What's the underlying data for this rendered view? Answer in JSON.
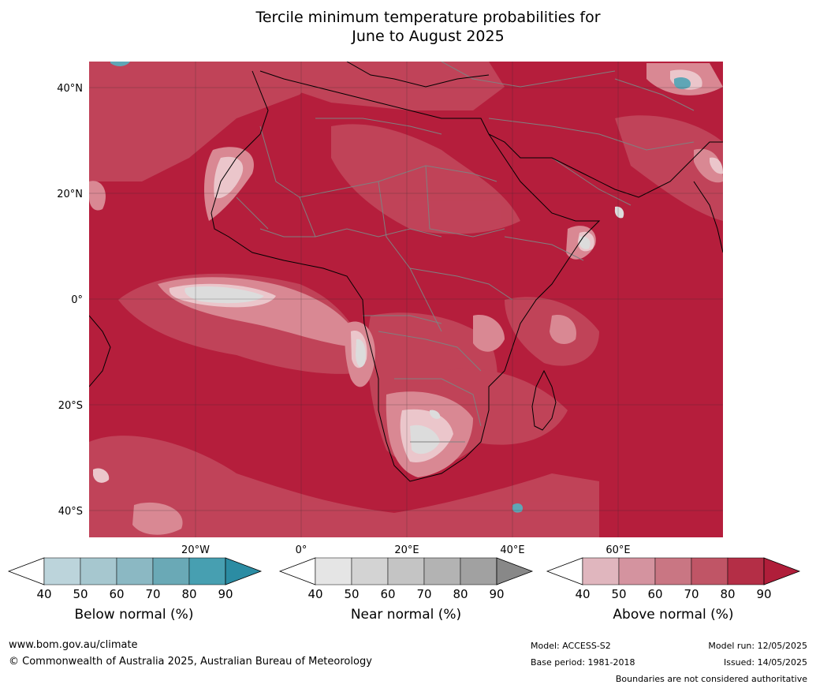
{
  "title_line1": "Tercile minimum temperature probabilities for",
  "title_line2": "June to August 2025",
  "lat_labels": [
    "40°N",
    "20°N",
    "0°",
    "20°S",
    "40°S"
  ],
  "lon_labels": [
    "20°W",
    "0°",
    "20°E",
    "40°E",
    "60°E"
  ],
  "colorbars": [
    {
      "label": "Below normal (%)",
      "ticks": [
        "40",
        "50",
        "60",
        "70",
        "80",
        "90"
      ],
      "colors": [
        "#ffffff",
        "#bcd4db",
        "#a6c7cf",
        "#8bb8c3",
        "#6aa9b6",
        "#479fb1",
        "#2b8ca3"
      ]
    },
    {
      "label": "Near normal (%)",
      "ticks": [
        "40",
        "50",
        "60",
        "70",
        "80",
        "90"
      ],
      "colors": [
        "#ffffff",
        "#e5e5e5",
        "#d3d3d3",
        "#c4c4c4",
        "#b3b3b3",
        "#a1a1a1",
        "#888888"
      ]
    },
    {
      "label": "Above normal (%)",
      "ticks": [
        "40",
        "50",
        "60",
        "70",
        "80",
        "90"
      ],
      "colors": [
        "#ffffff",
        "#e0b6be",
        "#d4939f",
        "#c97683",
        "#c05566",
        "#b42e46",
        "#b01e3a"
      ]
    }
  ],
  "footer": {
    "website": "www.bom.gov.au/climate",
    "copyright": "© Commonwealth of Australia 2025, Australian Bureau of Meteorology",
    "model": "Model: ACCESS-S2",
    "base_period": "Base period: 1981-2018",
    "model_run": "Model run: 12/05/2025",
    "issued": "Issued: 14/05/2025",
    "disclaimer": "Boundaries are not considered authoritative"
  },
  "colors": {
    "map_base": "#b51e3c",
    "shade_mid": "#c24a5e",
    "shade_light": "#d98893",
    "shade_pale": "#ebc6cb",
    "near_gray": "#dcdcdc",
    "below_blue": "#5fa6b6"
  }
}
